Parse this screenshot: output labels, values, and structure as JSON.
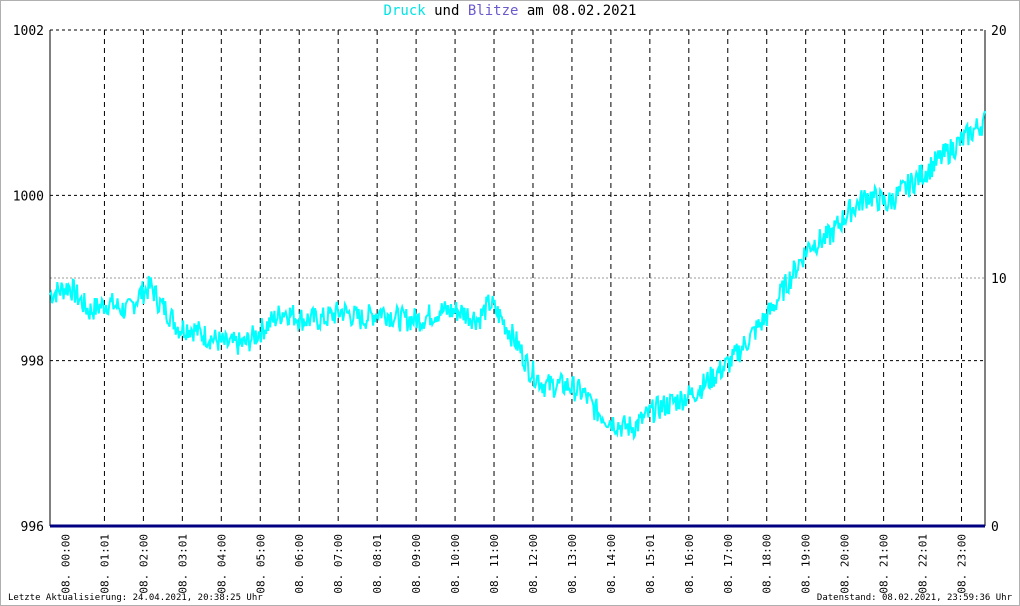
{
  "title": {
    "word1": "Druck",
    "word2": " und ",
    "word3": "Blitze",
    "word4": " am 08.02.2021"
  },
  "footer": {
    "left": "Letzte Aktualisierung: 24.04.2021, 20:38:25 Uhr",
    "right": "Datenstand: 08.02.2021, 23:59:36 Uhr"
  },
  "colors": {
    "pressure": "#00ffff",
    "lightning": "#000080",
    "word_und": "#000000",
    "word_blitze": "#6a5acd"
  },
  "chart_data": {
    "type": "line",
    "title": "Druck und Blitze am 08.02.2021",
    "y_left": {
      "range": [
        996,
        1002
      ],
      "ticks": [
        996,
        998,
        1000,
        1002
      ]
    },
    "y_right": {
      "range": [
        0,
        20
      ],
      "ticks": [
        0,
        10,
        20
      ]
    },
    "x_range_hours": [
      0,
      24
    ],
    "x_ticks": [
      "08. 00:00",
      "08. 01:01",
      "08. 02:00",
      "08. 03:01",
      "08. 04:00",
      "08. 05:00",
      "08. 06:00",
      "08. 07:00",
      "08. 08:01",
      "08. 09:00",
      "08. 10:00",
      "08. 11:00",
      "08. 12:00",
      "08. 13:00",
      "08. 14:00",
      "08. 15:01",
      "08. 16:00",
      "08. 17:00",
      "08. 18:00",
      "08. 19:00",
      "08. 20:00",
      "08. 21:00",
      "08. 22:01",
      "08. 23:00"
    ],
    "grid": true,
    "series": [
      {
        "name": "Druck",
        "axis": "left",
        "x": [
          0.0,
          0.5,
          1.0,
          1.5,
          2.0,
          2.3,
          2.6,
          2.8,
          3.0,
          3.3,
          3.6,
          4.0,
          4.5,
          5.0,
          5.5,
          6.0,
          6.5,
          7.0,
          7.5,
          8.0,
          8.5,
          9.0,
          9.5,
          10.0,
          10.5,
          11.0,
          11.3,
          11.6,
          12.0,
          12.3,
          12.7,
          13.0,
          13.3,
          13.7,
          14.0,
          14.3,
          14.7,
          15.0,
          15.5,
          16.0,
          16.5,
          17.0,
          17.5,
          18.0,
          18.5,
          19.0,
          19.5,
          20.0,
          20.5,
          21.0,
          21.5,
          22.0,
          22.5,
          23.0,
          23.5,
          24.0
        ],
        "y": [
          998.8,
          998.9,
          998.6,
          998.7,
          998.6,
          998.8,
          998.9,
          998.7,
          998.6,
          998.4,
          998.4,
          998.3,
          998.2,
          998.2,
          998.4,
          998.6,
          998.5,
          998.5,
          998.6,
          998.5,
          998.6,
          998.5,
          998.5,
          998.6,
          998.6,
          998.5,
          998.7,
          998.5,
          998.2,
          997.9,
          997.7,
          997.7,
          997.7,
          997.6,
          997.4,
          997.3,
          997.2,
          997.2,
          997.4,
          997.5,
          997.6,
          997.8,
          998.0,
          998.3,
          998.6,
          999.0,
          999.4,
          999.5,
          999.8,
          1000.0,
          999.9,
          1000.1,
          1000.3,
          1000.5,
          1000.7,
          1000.9
        ]
      },
      {
        "name": "Blitze",
        "axis": "right",
        "x": [
          0,
          24
        ],
        "y": [
          0,
          0
        ]
      }
    ]
  }
}
